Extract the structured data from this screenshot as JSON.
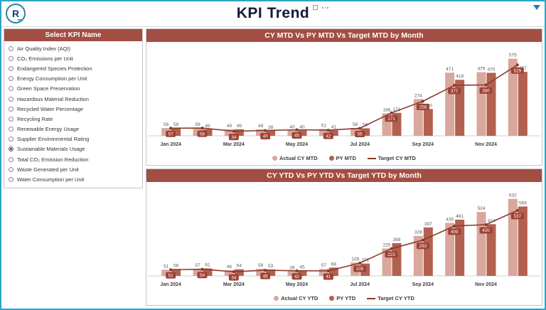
{
  "app": {
    "title": "KPI Trend",
    "logo_text": "R"
  },
  "colors": {
    "accent_border": "#2FA3C6",
    "panel_header_bg": "#A34E43",
    "actual_bar": "#D9A79D",
    "py_bar": "#B4604F",
    "target_line": "#8C392B",
    "target_pill_bg": "#9C4335",
    "title_color": "#17173D"
  },
  "sidebar": {
    "header": "Select KPI Name",
    "items": [
      {
        "label": "Air Quality Index (AQI)",
        "selected": false
      },
      {
        "label": "CO₂ Emissions per Unit",
        "selected": false
      },
      {
        "label": "Endangered Species Protection",
        "selected": false
      },
      {
        "label": "Energy Consumption per Unit",
        "selected": false
      },
      {
        "label": "Green Space Preservation",
        "selected": false
      },
      {
        "label": "Hazardous Material Reduction",
        "selected": false
      },
      {
        "label": "Recycled Water Percentage",
        "selected": false
      },
      {
        "label": "Recycling Rate",
        "selected": false
      },
      {
        "label": "Renewable Energy Usage",
        "selected": false
      },
      {
        "label": "Supplier Environmental Rating",
        "selected": false
      },
      {
        "label": "Sustainable Materials Usage",
        "selected": true
      },
      {
        "label": "Total CO₂ Emission Reduction",
        "selected": false
      },
      {
        "label": "Waste Generated per Unit",
        "selected": false
      },
      {
        "label": "Water Consumption per Unit",
        "selected": false
      }
    ]
  },
  "chart_data": [
    {
      "type": "bar",
      "subtype": "grouped-bar-with-line",
      "title": "CY MTD Vs PY MTD Vs Target MTD by Month",
      "categories": [
        "Jan 2024",
        "Feb 2024",
        "Mar 2024",
        "Apr 2024",
        "May 2024",
        "Jun 2024",
        "Jul 2024",
        "Aug 2024",
        "Sep 2024",
        "Oct 2024",
        "Nov 2024",
        "Dec 2024"
      ],
      "x_axis_labels_shown": [
        "Jan 2024",
        "Mar 2024",
        "May 2024",
        "Jul 2024",
        "Sep 2024",
        "Nov 2024"
      ],
      "series": [
        {
          "name": "Actual CY MTD",
          "type": "bar",
          "color": "#D9A79D",
          "values": [
            58,
            59,
            49,
            49,
            40,
            51,
            58,
            168,
            274,
            471,
            475,
            575
          ]
        },
        {
          "name": "PY MTD",
          "type": "bar",
          "color": "#B4604F",
          "values": [
            58,
            49,
            49,
            38,
            40,
            41,
            56,
            171,
            200,
            418,
            470,
            477
          ]
        },
        {
          "name": "Target CY MTD",
          "type": "line",
          "color": "#8C392B",
          "values": [
            57,
            58,
            34,
            40,
            45,
            42,
            56,
            171,
            258,
            377,
            380,
            529
          ]
        }
      ],
      "ylim": [
        0,
        620
      ],
      "grid": false,
      "legend_position": "bottom"
    },
    {
      "type": "bar",
      "subtype": "grouped-bar-with-line",
      "title": "CY YTD Vs PY YTD Vs Target YTD by Month",
      "categories": [
        "Jan 2024",
        "Feb 2024",
        "Mar 2024",
        "Apr 2024",
        "May 2024",
        "Jun 2024",
        "Jul 2024",
        "Aug 2024",
        "Sep 2024",
        "Oct 2024",
        "Nov 2024",
        "Dec 2024"
      ],
      "x_axis_labels_shown": [
        "Jan 2024",
        "Mar 2024",
        "May 2024",
        "Jul 2024",
        "Sep 2024",
        "Nov 2024"
      ],
      "series": [
        {
          "name": "Actual CY YTD",
          "type": "bar",
          "color": "#D9A79D",
          "values": [
            51,
            57,
            46,
            58,
            39,
            57,
            109,
            225,
            328,
            435,
            524,
            632
          ]
        },
        {
          "name": "PY YTD",
          "type": "bar",
          "color": "#B4604F",
          "values": [
            56,
            61,
            54,
            53,
            45,
            68,
            101,
            268,
            397,
            461,
            424,
            569
          ]
        },
        {
          "name": "Target CY YTD",
          "type": "line",
          "color": "#8C392B",
          "values": [
            51,
            54,
            34,
            46,
            42,
            41,
            105,
            223,
            293,
            409,
            420,
            537
          ]
        }
      ],
      "ylim": [
        0,
        680
      ],
      "grid": false,
      "legend_position": "bottom"
    }
  ]
}
